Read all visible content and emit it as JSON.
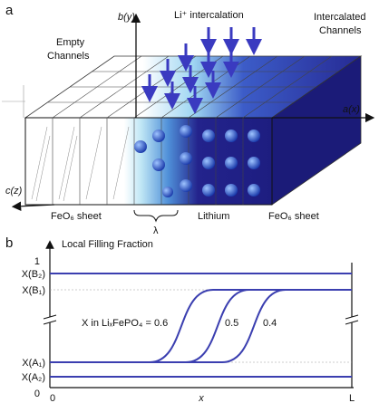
{
  "panel_a": {
    "label": "a",
    "axis_b": "b(y)",
    "axis_a": "a(x)",
    "axis_c": "c(z)",
    "intercalation": "Li⁺ intercalation",
    "intercalated_channels": [
      "Intercalated",
      "Channels"
    ],
    "empty_channels": [
      "Empty",
      "Channels"
    ],
    "feo6_left": "FeO₆ sheet",
    "lambda": "λ",
    "lithium": "Lithium",
    "feo6_right": "FeO₆ sheet"
  },
  "panel_b": {
    "label": "b",
    "y_title": "Local Filling Fraction",
    "y_top": "1",
    "xb2": "X(B₂)",
    "xb1": "X(B₁)",
    "xa1": "X(A₁)",
    "xa2": "X(A₂)",
    "y_zero": "0",
    "x_zero": "0",
    "x_mid": "x",
    "x_end": "L",
    "curve_label_1": "X in LiₓFePO₄ = 0.6",
    "curve_label_2": "0.5",
    "curve_label_3": "0.4"
  }
}
